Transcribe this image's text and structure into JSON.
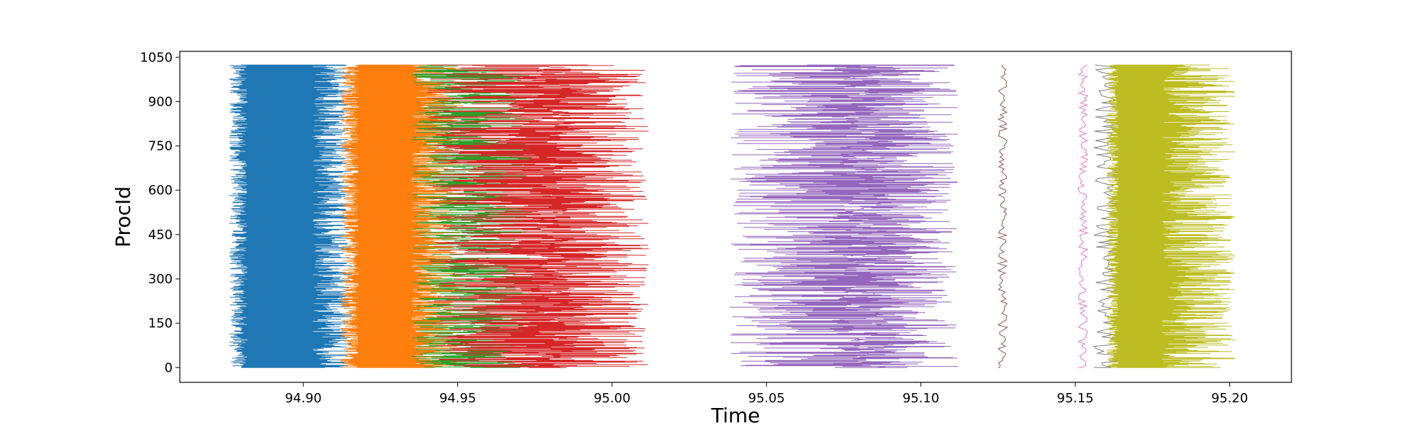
{
  "chart_data": {
    "type": "gantt-timeline",
    "xlabel": "Time",
    "ylabel": "ProcId",
    "xlim": [
      94.86,
      95.22
    ],
    "ylim": [
      -50,
      1070
    ],
    "x_ticks": [
      "94.90",
      "94.95",
      "95.00",
      "95.05",
      "95.10",
      "95.15",
      "95.20"
    ],
    "x_tick_values": [
      94.9,
      94.95,
      95.0,
      95.05,
      95.1,
      95.15,
      95.2
    ],
    "y_ticks": [
      "0",
      "150",
      "300",
      "450",
      "600",
      "750",
      "900",
      "1050"
    ],
    "y_tick_values": [
      0,
      150,
      300,
      450,
      600,
      750,
      900,
      1050
    ],
    "grid": false,
    "proc_range": [
      0,
      1024
    ],
    "series": [
      {
        "color": "#1f77b4",
        "start_range": [
          94.876,
          94.882
        ],
        "end_range": [
          94.903,
          94.916
        ]
      },
      {
        "color": "#ff7f0e",
        "start_range": [
          94.912,
          94.918
        ],
        "end_range": [
          94.935,
          94.952
        ]
      },
      {
        "color": "#2ca02c",
        "start_range": [
          94.935,
          94.96
        ],
        "end_range": [
          94.945,
          94.975
        ]
      },
      {
        "color": "#d62728",
        "start_range": [
          94.94,
          94.985
        ],
        "end_range": [
          94.975,
          95.012
        ]
      },
      {
        "color": "#9467bd",
        "start_range": [
          95.038,
          95.088
        ],
        "end_range": [
          95.075,
          95.112
        ]
      },
      {
        "color": "#8c564b",
        "start_range": [
          95.125,
          95.125
        ],
        "end_range": [
          95.126,
          95.128
        ]
      },
      {
        "color": "#e377c2",
        "start_range": [
          95.151,
          95.152
        ],
        "end_range": [
          95.152,
          95.154
        ]
      },
      {
        "color": "#7f7f7f",
        "start_range": [
          95.156,
          95.158
        ],
        "end_range": [
          95.16,
          95.166
        ]
      },
      {
        "color": "#bcbd22",
        "start_range": [
          95.16,
          95.164
        ],
        "end_range": [
          95.178,
          95.202
        ]
      }
    ]
  }
}
